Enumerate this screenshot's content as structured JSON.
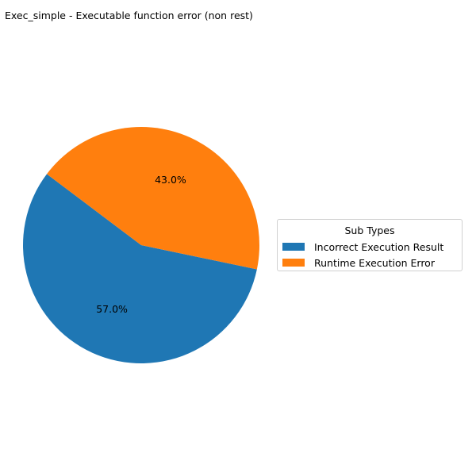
{
  "chart_data": {
    "type": "pie",
    "title": "Exec_simple - Executable function error (non rest)",
    "legend_title": "Sub Types",
    "legend_position": "right",
    "slices": [
      {
        "label": "Incorrect Execution Result",
        "value": 57.0,
        "pct_label": "57.0%",
        "color": "#1f77b4"
      },
      {
        "label": "Runtime Execution Error",
        "value": 43.0,
        "pct_label": "43.0%",
        "color": "#ff7f0e"
      }
    ]
  }
}
